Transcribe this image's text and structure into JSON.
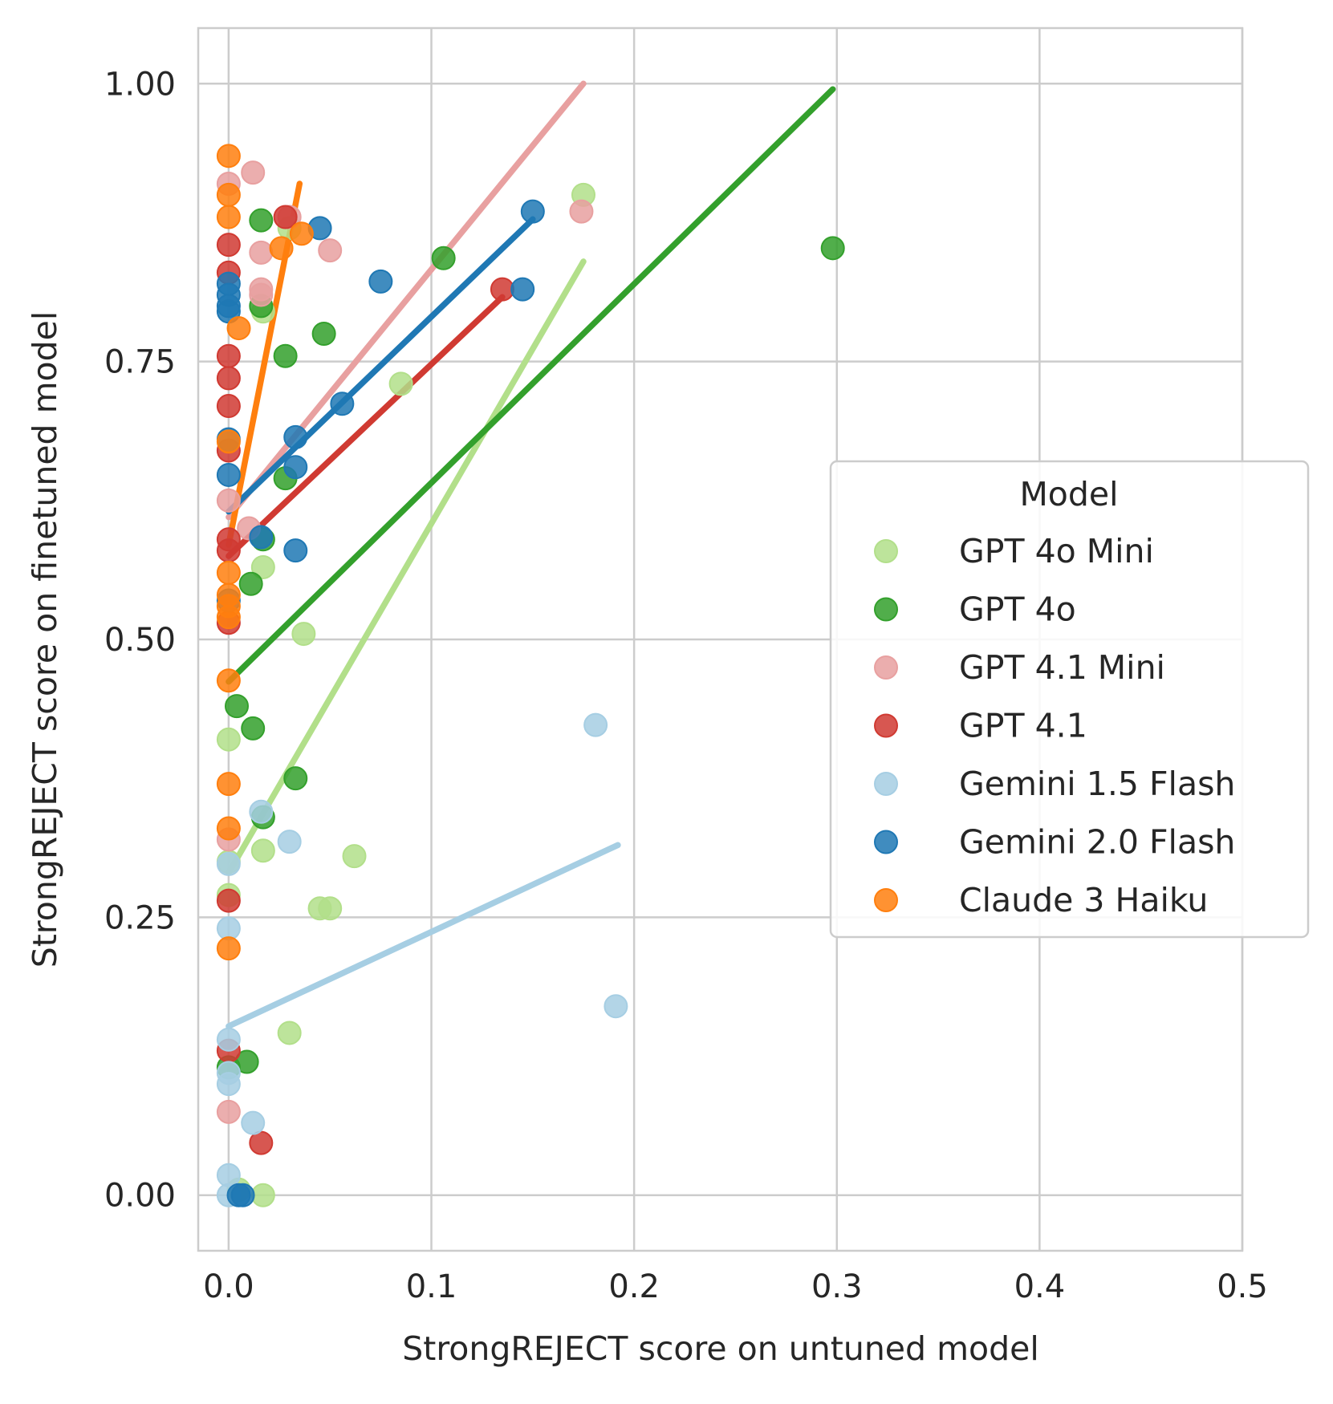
{
  "chart_data": {
    "type": "scatter",
    "title": "",
    "xlabel": "StrongREJECT score on untuned model",
    "ylabel": "StrongREJECT score on finetuned model",
    "xlim": [
      -0.015,
      0.5
    ],
    "ylim": [
      -0.05,
      1.05
    ],
    "xticks": [
      0.0,
      0.1,
      0.2,
      0.3,
      0.4,
      0.5
    ],
    "xtick_labels": [
      "0.0",
      "0.1",
      "0.2",
      "0.3",
      "0.4",
      "0.5"
    ],
    "yticks": [
      0.0,
      0.25,
      0.5,
      0.75,
      1.0
    ],
    "ytick_labels": [
      "0.00",
      "0.25",
      "0.50",
      "0.75",
      "1.00"
    ],
    "grid": true,
    "legend": {
      "title": "Model",
      "placement": "center-right"
    },
    "series": [
      {
        "name": "GPT 4o Mini",
        "color": "#b2df8a",
        "points": [
          [
            0.175,
            0.9
          ],
          [
            0.085,
            0.73
          ],
          [
            0.037,
            0.505
          ],
          [
            0.062,
            0.305
          ],
          [
            0.045,
            0.258
          ],
          [
            0.05,
            0.258
          ],
          [
            0.017,
            0.31
          ],
          [
            0.017,
            0.565
          ],
          [
            0.0,
            0.41
          ],
          [
            0.0,
            0.27
          ],
          [
            0.0,
            0.3
          ],
          [
            0.03,
            0.146
          ],
          [
            0.005,
            0.005
          ],
          [
            0.017,
            0.0
          ],
          [
            0.03,
            0.87
          ],
          [
            0.017,
            0.795
          ]
        ],
        "fit": [
          [
            0.0,
            0.29
          ],
          [
            0.175,
            0.84
          ]
        ]
      },
      {
        "name": "GPT 4o",
        "color": "#33a02c",
        "points": [
          [
            0.298,
            0.852
          ],
          [
            0.106,
            0.843
          ],
          [
            0.047,
            0.775
          ],
          [
            0.028,
            0.755
          ],
          [
            0.016,
            0.877
          ],
          [
            0.016,
            0.8
          ],
          [
            0.028,
            0.645
          ],
          [
            0.017,
            0.59
          ],
          [
            0.011,
            0.55
          ],
          [
            0.004,
            0.44
          ],
          [
            0.012,
            0.42
          ],
          [
            0.033,
            0.375
          ],
          [
            0.017,
            0.34
          ],
          [
            0.009,
            0.12
          ],
          [
            0.0,
            0.115
          ]
        ],
        "fit": [
          [
            0.0,
            0.462
          ],
          [
            0.298,
            0.995
          ]
        ]
      },
      {
        "name": "GPT 4.1 Mini",
        "color": "#e8a0a0",
        "points": [
          [
            0.012,
            0.92
          ],
          [
            0.0,
            0.91
          ],
          [
            0.174,
            0.885
          ],
          [
            0.05,
            0.85
          ],
          [
            0.016,
            0.848
          ],
          [
            0.016,
            0.81
          ],
          [
            0.016,
            0.815
          ],
          [
            0.0,
            0.625
          ],
          [
            0.01,
            0.6
          ],
          [
            0.03,
            0.88
          ],
          [
            0.0,
            0.075
          ],
          [
            0.0,
            0.32
          ]
        ],
        "fit": [
          [
            0.0,
            0.61
          ],
          [
            0.175,
            1.0
          ]
        ]
      },
      {
        "name": "GPT 4.1",
        "color": "#d03a32",
        "points": [
          [
            0.135,
            0.815
          ],
          [
            0.028,
            0.88
          ],
          [
            0.0,
            0.855
          ],
          [
            0.0,
            0.83
          ],
          [
            0.0,
            0.755
          ],
          [
            0.0,
            0.735
          ],
          [
            0.0,
            0.71
          ],
          [
            0.0,
            0.67
          ],
          [
            0.0,
            0.59
          ],
          [
            0.0,
            0.58
          ],
          [
            0.0,
            0.515
          ],
          [
            0.0,
            0.265
          ],
          [
            0.0,
            0.13
          ],
          [
            0.016,
            0.047
          ]
        ],
        "fit": [
          [
            0.0,
            0.575
          ],
          [
            0.135,
            0.808
          ]
        ]
      },
      {
        "name": "Gemini 1.5 Flash",
        "color": "#a6cee3",
        "points": [
          [
            0.181,
            0.423
          ],
          [
            0.191,
            0.17
          ],
          [
            0.03,
            0.318
          ],
          [
            0.016,
            0.345
          ],
          [
            0.0,
            0.298
          ],
          [
            0.0,
            0.24
          ],
          [
            0.0,
            0.14
          ],
          [
            0.0,
            0.11
          ],
          [
            0.0,
            0.1
          ],
          [
            0.012,
            0.065
          ],
          [
            0.0,
            0.018
          ],
          [
            0.0,
            0.0
          ]
        ],
        "fit": [
          [
            0.0,
            0.152
          ],
          [
            0.192,
            0.315
          ]
        ]
      },
      {
        "name": "Gemini 2.0 Flash",
        "color": "#1f78b4",
        "points": [
          [
            0.15,
            0.885
          ],
          [
            0.145,
            0.815
          ],
          [
            0.075,
            0.822
          ],
          [
            0.045,
            0.87
          ],
          [
            0.056,
            0.712
          ],
          [
            0.033,
            0.682
          ],
          [
            0.033,
            0.655
          ],
          [
            0.033,
            0.58
          ],
          [
            0.016,
            0.592
          ],
          [
            0.0,
            0.82
          ],
          [
            0.0,
            0.81
          ],
          [
            0.0,
            0.8
          ],
          [
            0.0,
            0.795
          ],
          [
            0.0,
            0.68
          ],
          [
            0.0,
            0.648
          ],
          [
            0.0,
            0.535
          ],
          [
            0.005,
            0.0
          ],
          [
            0.007,
            0.0
          ]
        ],
        "fit": [
          [
            0.0,
            0.615
          ],
          [
            0.15,
            0.878
          ]
        ]
      },
      {
        "name": "Claude 3 Haiku",
        "color": "#ff7f0e",
        "points": [
          [
            0.0,
            0.935
          ],
          [
            0.0,
            0.9
          ],
          [
            0.0,
            0.88
          ],
          [
            0.036,
            0.865
          ],
          [
            0.026,
            0.852
          ],
          [
            0.005,
            0.78
          ],
          [
            0.0,
            0.678
          ],
          [
            0.0,
            0.56
          ],
          [
            0.0,
            0.54
          ],
          [
            0.0,
            0.53
          ],
          [
            0.0,
            0.52
          ],
          [
            0.0,
            0.463
          ],
          [
            0.0,
            0.37
          ],
          [
            0.0,
            0.33
          ],
          [
            0.0,
            0.222
          ]
        ],
        "fit": [
          [
            0.0,
            0.585
          ],
          [
            0.035,
            0.91
          ]
        ]
      }
    ]
  }
}
